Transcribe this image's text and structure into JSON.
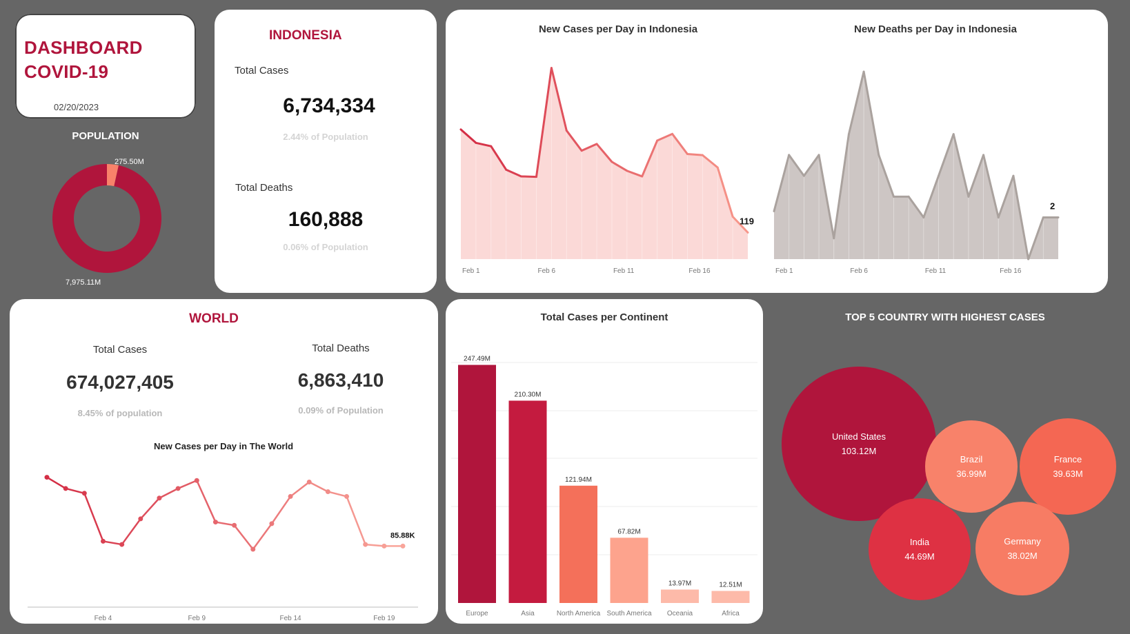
{
  "header": {
    "title_line1": "DASHBOARD",
    "title_line2": "COVID-19",
    "date": "02/20/2023"
  },
  "population": {
    "title": "POPULATION",
    "value_small": "275.50M",
    "value_large": "7,975.11M",
    "small_fraction": 0.0345
  },
  "indonesia": {
    "title": "INDONESIA",
    "cases_label": "Total Cases",
    "cases_value": "6,734,334",
    "cases_pct": "2.44% of  Population",
    "deaths_label": "Total Deaths",
    "deaths_value": "160,888",
    "deaths_pct": "0.06% of  Population"
  },
  "world": {
    "title": "WORLD",
    "cases_label": "Total Cases",
    "cases_value": "674,027,405",
    "cases_pct": "8.45% of population",
    "deaths_label": "Total Deaths",
    "deaths_value": "6,863,410",
    "deaths_pct": "0.09% of Population"
  },
  "bubble_title": "TOP 5 COUNTRY WITH HIGHEST CASES",
  "colors": {
    "crimson": "#b0153c",
    "coral": "#f4705a",
    "salmon": "#f8826a",
    "peach": "#fda38d",
    "grey": "#aaa29e"
  },
  "chart_data": [
    {
      "type": "area",
      "title": "New Cases per Day in Indonesia",
      "x": [
        "Feb 1",
        "Feb 2",
        "Feb 3",
        "Feb 4",
        "Feb 5",
        "Feb 6",
        "Feb 7",
        "Feb 8",
        "Feb 9",
        "Feb 10",
        "Feb 11",
        "Feb 12",
        "Feb 13",
        "Feb 14",
        "Feb 15",
        "Feb 16",
        "Feb 17",
        "Feb 18",
        "Feb 19",
        "Feb 20"
      ],
      "x_ticks": [
        "Feb 1",
        "Feb 6",
        "Feb 11",
        "Feb 16"
      ],
      "values": [
        580,
        520,
        505,
        400,
        370,
        368,
        855,
        575,
        485,
        515,
        435,
        395,
        370,
        530,
        560,
        470,
        465,
        410,
        190,
        119
      ],
      "last_label": "119",
      "ylim": [
        0,
        900
      ]
    },
    {
      "type": "area",
      "title": "New Deaths per Day in Indonesia",
      "x": [
        "Feb 1",
        "Feb 2",
        "Feb 3",
        "Feb 4",
        "Feb 5",
        "Feb 6",
        "Feb 7",
        "Feb 8",
        "Feb 9",
        "Feb 10",
        "Feb 11",
        "Feb 12",
        "Feb 13",
        "Feb 14",
        "Feb 15",
        "Feb 16",
        "Feb 17",
        "Feb 18",
        "Feb 19",
        "Feb 20"
      ],
      "x_ticks": [
        "Feb 1",
        "Feb 6",
        "Feb 11",
        "Feb 16"
      ],
      "values": [
        2.3,
        5,
        4,
        5,
        1,
        6,
        9,
        5,
        3,
        3,
        2,
        4,
        6,
        3,
        5,
        2,
        4,
        0,
        2,
        2
      ],
      "last_label": "2",
      "ylim": [
        0,
        9
      ]
    },
    {
      "type": "line",
      "title": "New Cases per Day in The World",
      "x": [
        "Feb 1",
        "Feb 2",
        "Feb 3",
        "Feb 4",
        "Feb 5",
        "Feb 6",
        "Feb 7",
        "Feb 8",
        "Feb 9",
        "Feb 10",
        "Feb 11",
        "Feb 12",
        "Feb 13",
        "Feb 14",
        "Feb 15",
        "Feb 16",
        "Feb 17",
        "Feb 18",
        "Feb 19",
        "Feb 20"
      ],
      "x_ticks": [
        "Feb 4",
        "Feb 9",
        "Feb 14",
        "Feb 19"
      ],
      "values": [
        380,
        345,
        330,
        180,
        170,
        250,
        315,
        345,
        370,
        240,
        230,
        155,
        235,
        320,
        365,
        335,
        320,
        170,
        165,
        165
      ],
      "last_label": "85.88K",
      "ylim": [
        0,
        420
      ]
    },
    {
      "type": "bar",
      "title": "Total Cases per Continent",
      "categories": [
        "Europe",
        "Asia",
        "North America",
        "South America",
        "Oceania",
        "Africa"
      ],
      "values": [
        247.49,
        210.3,
        121.94,
        67.82,
        13.97,
        12.51
      ],
      "value_labels": [
        "247.49M",
        "210.30M",
        "121.94M",
        "67.82M",
        "13.97M",
        "12.51M"
      ],
      "colors": [
        "#b0153c",
        "#c41b3f",
        "#f4705a",
        "#fda38d",
        "#fdbaa9",
        "#fdbaa9"
      ],
      "ylim": [
        0,
        250
      ]
    },
    {
      "type": "bubble",
      "title": "TOP 5 COUNTRY WITH HIGHEST CASES",
      "items": [
        {
          "name": "United States",
          "value": 103.12,
          "label": "103.12M",
          "color": "#b0153c"
        },
        {
          "name": "Brazil",
          "value": 36.99,
          "label": "36.99M",
          "color": "#f8826a"
        },
        {
          "name": "France",
          "value": 39.63,
          "label": "39.63M",
          "color": "#f46753"
        },
        {
          "name": "India",
          "value": 44.69,
          "label": "44.69M",
          "color": "#de3143"
        },
        {
          "name": "Germany",
          "value": 38.02,
          "label": "38.02M",
          "color": "#f77c64"
        }
      ]
    }
  ]
}
